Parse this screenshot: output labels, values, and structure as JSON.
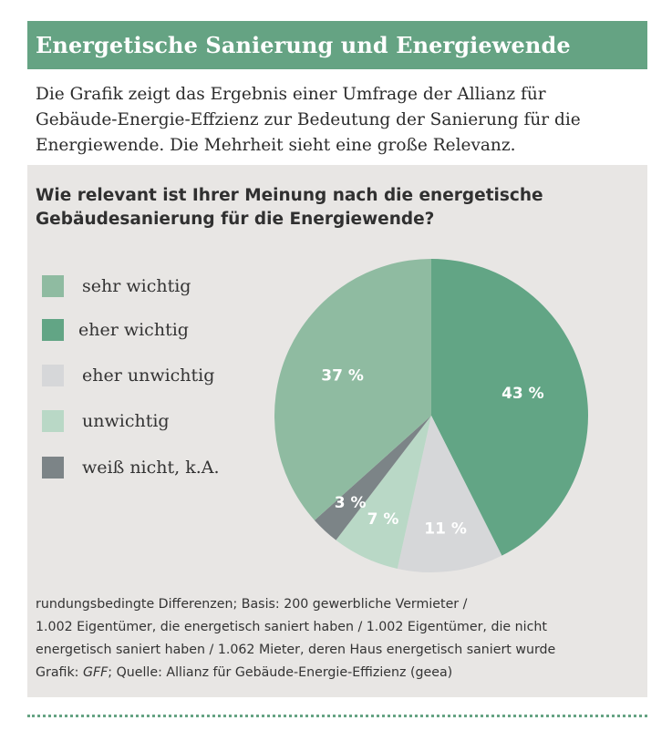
{
  "header": {
    "title": "Energetische Sanierung und Energiewende"
  },
  "intro": {
    "lines": [
      "Die Grafik zeigt das Ergebnis einer Umfrage der Allianz für",
      "Gebäude-Energie-Effzienz zur Bedeutung der Sanierung für die",
      "Energiewende. Die Mehrheit sieht eine große Relevanz."
    ]
  },
  "colors": {
    "header_bg": "#65a383",
    "panel_bg": "#e8e6e4",
    "sehr_wichtig": "#8fbba1",
    "eher_wichtig": "#62a585",
    "eher_unwichtig": "#d6d7d9",
    "unwichtig": "#b9d8c6",
    "weiss_nicht": "#7c8487"
  },
  "chart_data": {
    "type": "pie",
    "title_lines": [
      "Wie relevant ist Ihrer Meinung nach die energetische",
      "Gebäudesanierung für die Energiewende?"
    ],
    "categories": [
      "sehr wichtig",
      "eher wichtig",
      "eher unwichtig",
      "unwichtig",
      "weiß nicht, k.A."
    ],
    "values": [
      37,
      43,
      11,
      7,
      3
    ],
    "slice_labels": [
      "37 %",
      "43 %",
      "11 %",
      "7 %",
      "3 %"
    ],
    "draw_order": [
      1,
      2,
      3,
      4,
      0
    ],
    "start_angle_deg": 0,
    "legend_position": "left",
    "unit": "%"
  },
  "footnote": {
    "lines": [
      "rundungsbedingte Differenzen; Basis: 200 gewerbliche Vermieter /",
      "1.002 Eigentümer, die energetisch saniert haben / 1.002 Eigentümer, die nicht",
      "energetisch saniert haben / 1.062 Mieter, deren Haus energetisch saniert wurde"
    ],
    "credit_prefix": "Grafik: ",
    "credit_italic": "GFF",
    "credit_suffix": "; Quelle: Allianz für Gebäude-Energie-Effizienz (geea)"
  }
}
